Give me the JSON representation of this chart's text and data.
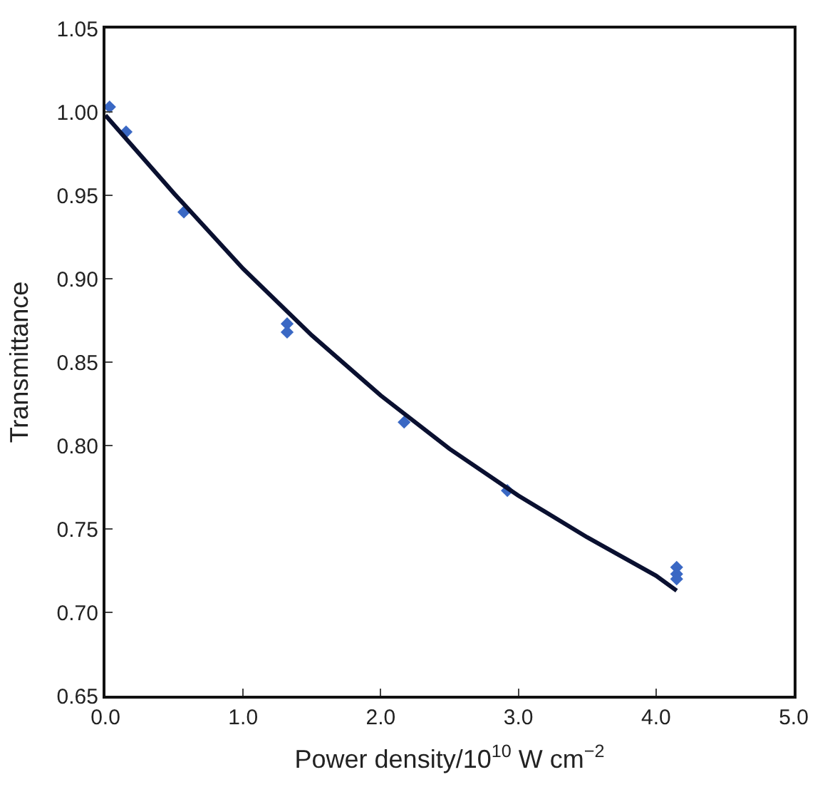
{
  "chart_data": {
    "type": "scatter",
    "xlabel": "Power density/10$^{10}$ W cm$^{−2}$",
    "ylabel": "Transmittance",
    "xlim": [
      0,
      5
    ],
    "xticks": [
      {
        "value": 0,
        "label": "0.0"
      },
      {
        "value": 1,
        "label": "1.0"
      },
      {
        "value": 2,
        "label": "2.0"
      },
      {
        "value": 3,
        "label": "3.0"
      },
      {
        "value": 4,
        "label": "4.0"
      },
      {
        "value": 5,
        "label": "5.0"
      }
    ],
    "ylim": [
      0.65,
      1.05
    ],
    "yticks": [
      {
        "value": 0.65,
        "label": "0.65"
      },
      {
        "value": 0.7,
        "label": "0.70"
      },
      {
        "value": 0.75,
        "label": "0.75"
      },
      {
        "value": 0.8,
        "label": "0.80"
      },
      {
        "value": 0.85,
        "label": "0.85"
      },
      {
        "value": 0.9,
        "label": "0.90"
      },
      {
        "value": 0.95,
        "label": "0.95"
      },
      {
        "value": 1.0,
        "label": "1.00"
      },
      {
        "value": 1.05,
        "label": "1.05"
      }
    ],
    "legend": false,
    "series": [
      {
        "marker": "diamond",
        "color": "#3a68c4",
        "x": [
          0.03,
          0.15,
          0.57,
          1.32,
          1.32,
          2.17,
          2.92,
          4.15,
          4.15,
          4.15
        ],
        "values": [
          1.003,
          0.988,
          0.94,
          0.873,
          0.868,
          0.814,
          0.773,
          0.727,
          0.723,
          0.72
        ]
      },
      {
        "type": "line",
        "marker": "none",
        "color": "#0a1030",
        "x": [
          0,
          0.5,
          1,
          1.5,
          2,
          2.5,
          3,
          3.5,
          4,
          4.15
        ],
        "values": [
          0.998,
          0.951,
          0.906,
          0.866,
          0.83,
          0.798,
          0.77,
          0.745,
          0.722,
          0.713
        ]
      }
    ]
  }
}
